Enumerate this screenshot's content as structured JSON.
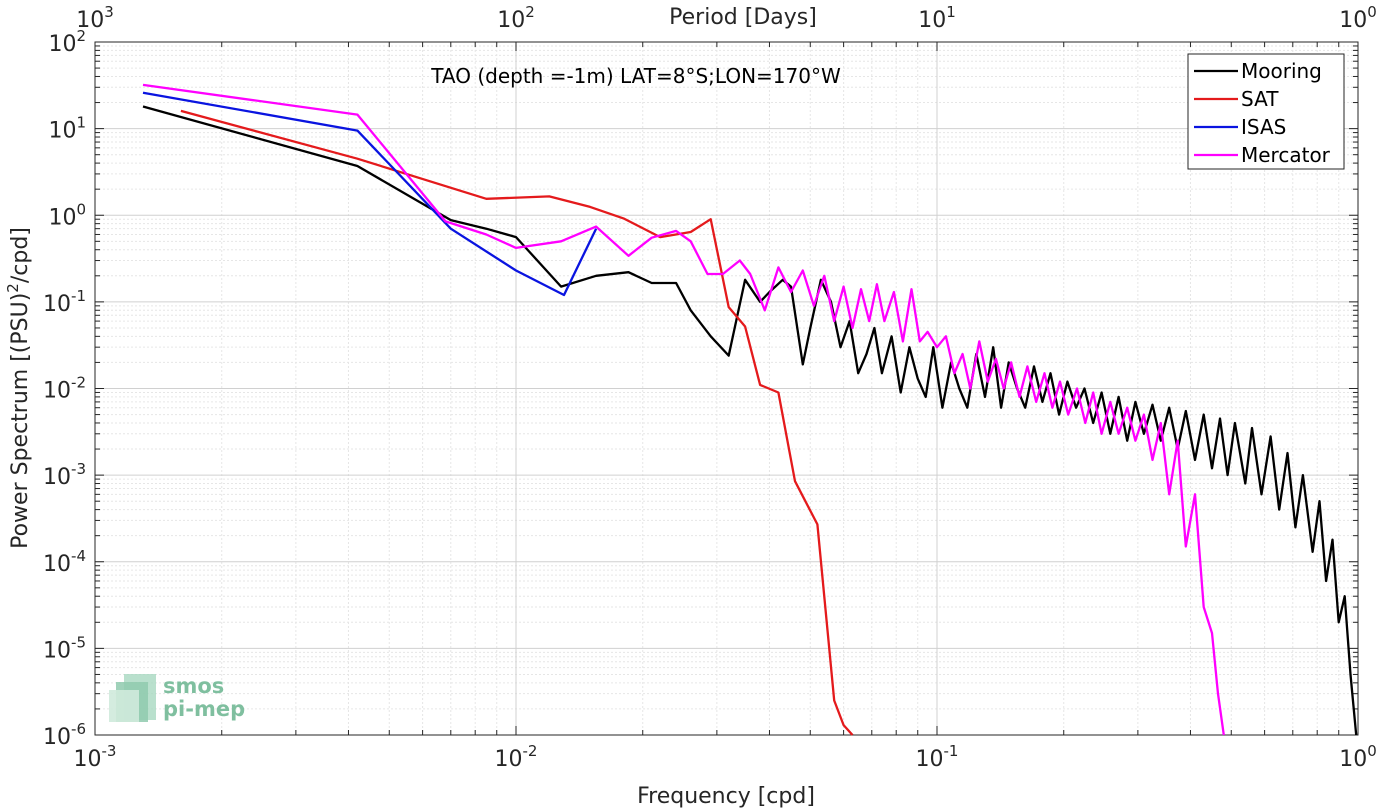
{
  "chart_data": {
    "type": "line",
    "annotation": "TAO (depth =-1m) LAT=8°S;LON=170°W",
    "xlabel": "Frequency [cpd]",
    "ylabel_main": "Power Spectrum [(PSU)",
    "ylabel_sup": "2",
    "ylabel_tail": "/cpd]",
    "top_xlabel": "Period [Days]",
    "x_scale": "log",
    "y_scale": "log",
    "xlim": [
      0.001,
      1
    ],
    "ylim": [
      1e-06,
      100
    ],
    "grid": true,
    "legend_position": "top-right",
    "x_ticks": [
      {
        "value": 0.001,
        "base": "10",
        "exp": "-3"
      },
      {
        "value": 0.01,
        "base": "10",
        "exp": "-2"
      },
      {
        "value": 0.1,
        "base": "10",
        "exp": "-1"
      },
      {
        "value": 1,
        "base": "10",
        "exp": "0"
      }
    ],
    "top_ticks": [
      {
        "value": 0.001,
        "base": "10",
        "exp": "3"
      },
      {
        "value": 0.01,
        "base": "10",
        "exp": "2"
      },
      {
        "value": 0.1,
        "base": "10",
        "exp": "1"
      },
      {
        "value": 1,
        "base": "10",
        "exp": "0"
      }
    ],
    "y_ticks": [
      {
        "value": 100,
        "base": "10",
        "exp": "2"
      },
      {
        "value": 10,
        "base": "10",
        "exp": "1"
      },
      {
        "value": 1,
        "base": "10",
        "exp": "0"
      },
      {
        "value": 0.1,
        "base": "10",
        "exp": "-1"
      },
      {
        "value": 0.01,
        "base": "10",
        "exp": "-2"
      },
      {
        "value": 0.001,
        "base": "10",
        "exp": "-3"
      },
      {
        "value": 0.0001,
        "base": "10",
        "exp": "-4"
      },
      {
        "value": 1e-05,
        "base": "10",
        "exp": "-5"
      },
      {
        "value": 1e-06,
        "base": "10",
        "exp": "-6"
      }
    ],
    "series": [
      {
        "name": "Mooring",
        "color": "#000000",
        "x": [
          0.0013,
          0.0042,
          0.007,
          0.0085,
          0.01,
          0.0128,
          0.0155,
          0.0185,
          0.021,
          0.024,
          0.026,
          0.029,
          0.032,
          0.035,
          0.038,
          0.04,
          0.043,
          0.045,
          0.048,
          0.05,
          0.053,
          0.056,
          0.059,
          0.062,
          0.065,
          0.068,
          0.071,
          0.074,
          0.078,
          0.082,
          0.086,
          0.09,
          0.094,
          0.098,
          0.103,
          0.108,
          0.113,
          0.118,
          0.124,
          0.13,
          0.136,
          0.142,
          0.148,
          0.155,
          0.162,
          0.17,
          0.178,
          0.186,
          0.195,
          0.204,
          0.214,
          0.224,
          0.235,
          0.246,
          0.258,
          0.27,
          0.283,
          0.296,
          0.31,
          0.325,
          0.34,
          0.356,
          0.373,
          0.39,
          0.41,
          0.43,
          0.45,
          0.47,
          0.49,
          0.51,
          0.54,
          0.56,
          0.59,
          0.62,
          0.65,
          0.68,
          0.71,
          0.74,
          0.78,
          0.81,
          0.84,
          0.87,
          0.9,
          0.93,
          0.96,
          0.99
        ],
        "y": [
          18,
          3.7,
          0.88,
          0.7,
          0.56,
          0.15,
          0.2,
          0.22,
          0.165,
          0.165,
          0.08,
          0.04,
          0.024,
          0.18,
          0.1,
          0.13,
          0.18,
          0.15,
          0.019,
          0.05,
          0.18,
          0.1,
          0.03,
          0.06,
          0.015,
          0.025,
          0.05,
          0.015,
          0.04,
          0.009,
          0.03,
          0.013,
          0.008,
          0.03,
          0.006,
          0.02,
          0.01,
          0.006,
          0.025,
          0.008,
          0.03,
          0.006,
          0.02,
          0.01,
          0.006,
          0.018,
          0.007,
          0.015,
          0.005,
          0.012,
          0.006,
          0.01,
          0.004,
          0.009,
          0.003,
          0.008,
          0.0025,
          0.007,
          0.003,
          0.0065,
          0.0025,
          0.006,
          0.002,
          0.0055,
          0.0015,
          0.005,
          0.0012,
          0.0045,
          0.001,
          0.004,
          0.0008,
          0.0035,
          0.0006,
          0.0028,
          0.0004,
          0.0018,
          0.00025,
          0.001,
          0.00013,
          0.0005,
          6e-05,
          0.00018,
          2e-05,
          4e-05,
          5e-06,
          1e-06
        ]
      },
      {
        "name": "SAT",
        "color": "#e41a1c",
        "x": [
          0.0016,
          0.0042,
          0.0085,
          0.012,
          0.015,
          0.018,
          0.022,
          0.026,
          0.029,
          0.032,
          0.035,
          0.038,
          0.042,
          0.046,
          0.052,
          0.057,
          0.06,
          0.063
        ],
        "y": [
          16,
          4.5,
          1.55,
          1.65,
          1.25,
          0.92,
          0.56,
          0.64,
          0.9,
          0.087,
          0.052,
          0.011,
          0.009,
          0.00085,
          0.00027,
          2.5e-06,
          1.3e-06,
          1e-06
        ]
      },
      {
        "name": "ISAS",
        "color": "#0a14e0",
        "x": [
          0.0013,
          0.0042,
          0.007,
          0.01,
          0.013,
          0.0155
        ],
        "y": [
          26,
          9.5,
          0.7,
          0.23,
          0.12,
          0.7
        ]
      },
      {
        "name": "Mercator",
        "color": "#ff00ff",
        "x": [
          0.0013,
          0.0042,
          0.0068,
          0.0085,
          0.01,
          0.0128,
          0.0155,
          0.0185,
          0.021,
          0.024,
          0.026,
          0.0285,
          0.031,
          0.034,
          0.036,
          0.039,
          0.042,
          0.045,
          0.048,
          0.051,
          0.054,
          0.057,
          0.06,
          0.063,
          0.066,
          0.069,
          0.072,
          0.075,
          0.079,
          0.083,
          0.087,
          0.091,
          0.095,
          0.1,
          0.105,
          0.11,
          0.115,
          0.12,
          0.126,
          0.132,
          0.138,
          0.144,
          0.15,
          0.157,
          0.164,
          0.172,
          0.18,
          0.188,
          0.196,
          0.205,
          0.215,
          0.225,
          0.235,
          0.246,
          0.258,
          0.27,
          0.283,
          0.296,
          0.31,
          0.325,
          0.34,
          0.356,
          0.373,
          0.39,
          0.41,
          0.43,
          0.45,
          0.465,
          0.48
        ],
        "y": [
          32,
          14.5,
          0.85,
          0.6,
          0.42,
          0.5,
          0.74,
          0.34,
          0.55,
          0.66,
          0.5,
          0.21,
          0.21,
          0.3,
          0.21,
          0.08,
          0.25,
          0.13,
          0.23,
          0.09,
          0.2,
          0.06,
          0.15,
          0.05,
          0.14,
          0.06,
          0.16,
          0.06,
          0.13,
          0.035,
          0.14,
          0.035,
          0.045,
          0.03,
          0.04,
          0.015,
          0.025,
          0.01,
          0.035,
          0.012,
          0.022,
          0.01,
          0.02,
          0.008,
          0.018,
          0.007,
          0.015,
          0.006,
          0.012,
          0.005,
          0.01,
          0.004,
          0.009,
          0.003,
          0.007,
          0.003,
          0.006,
          0.0025,
          0.005,
          0.0015,
          0.004,
          0.0006,
          0.0025,
          0.00015,
          0.0006,
          3e-05,
          1.5e-05,
          3e-06,
          1e-06
        ]
      }
    ]
  },
  "logo": {
    "line1": "smos",
    "line2": "pi-mep"
  }
}
